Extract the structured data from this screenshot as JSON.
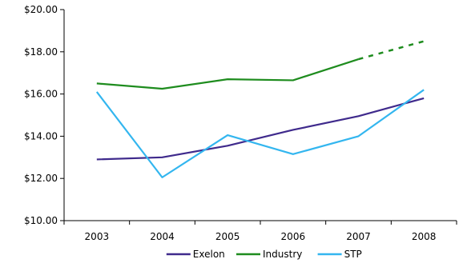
{
  "chart_data": {
    "type": "line",
    "categories": [
      "2003",
      "2004",
      "2005",
      "2006",
      "2007",
      "2008"
    ],
    "yticks": [
      "$10.00",
      "$12.00",
      "$14.00",
      "$16.00",
      "$18.00",
      "$20.00"
    ],
    "ylim": [
      10,
      20
    ],
    "grid": false,
    "legend_position": "bottom",
    "series": [
      {
        "name": "Exelon",
        "color": "#3f2a8c",
        "values": [
          12.9,
          13.0,
          13.55,
          14.3,
          14.95,
          15.8
        ],
        "dashed_from_index": null
      },
      {
        "name": "Industry",
        "color": "#1e8c1e",
        "values": [
          16.5,
          16.25,
          16.7,
          16.65,
          17.65,
          18.5
        ],
        "dashed_from_index": 4
      },
      {
        "name": "STP",
        "color": "#33b6ef",
        "values": [
          16.1,
          12.05,
          14.05,
          13.15,
          14.0,
          16.2
        ],
        "dashed_from_index": null
      }
    ]
  }
}
